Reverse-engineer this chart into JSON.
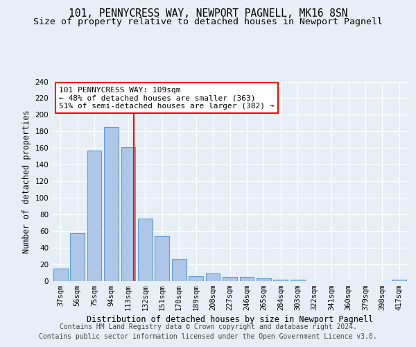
{
  "title_line1": "101, PENNYCRESS WAY, NEWPORT PAGNELL, MK16 8SN",
  "title_line2": "Size of property relative to detached houses in Newport Pagnell",
  "xlabel": "Distribution of detached houses by size in Newport Pagnell",
  "ylabel": "Number of detached properties",
  "categories": [
    "37sqm",
    "56sqm",
    "75sqm",
    "94sqm",
    "113sqm",
    "132sqm",
    "151sqm",
    "170sqm",
    "189sqm",
    "208sqm",
    "227sqm",
    "246sqm",
    "265sqm",
    "284sqm",
    "303sqm",
    "322sqm",
    "341sqm",
    "360sqm",
    "379sqm",
    "398sqm",
    "417sqm"
  ],
  "values": [
    15,
    58,
    157,
    185,
    161,
    75,
    54,
    27,
    6,
    9,
    5,
    5,
    3,
    2,
    2,
    0,
    0,
    0,
    0,
    0,
    2
  ],
  "bar_color": "#aec6e8",
  "bar_edgecolor": "#5a9fd4",
  "bar_linewidth": 0.8,
  "vline_x_index": 4,
  "vline_color": "red",
  "vline_linewidth": 1.5,
  "annotation_text": "101 PENNYCRESS WAY: 109sqm\n← 48% of detached houses are smaller (363)\n51% of semi-detached houses are larger (382) →",
  "ylim": [
    0,
    240
  ],
  "yticks": [
    0,
    20,
    40,
    60,
    80,
    100,
    120,
    140,
    160,
    180,
    200,
    220,
    240
  ],
  "footer_line1": "Contains HM Land Registry data © Crown copyright and database right 2024.",
  "footer_line2": "Contains public sector information licensed under the Open Government Licence v3.0.",
  "bg_color": "#e8eef5",
  "plot_bg_color": "#e8eef5",
  "grid_color": "#ffffff",
  "title_fontsize": 10.5,
  "subtitle_fontsize": 9.5,
  "axis_label_fontsize": 8.5,
  "tick_fontsize": 7.5,
  "annotation_fontsize": 8,
  "footer_fontsize": 7
}
